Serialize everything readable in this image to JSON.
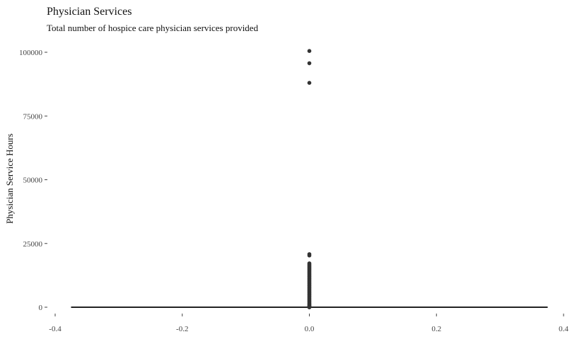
{
  "chart_data": {
    "type": "scatter",
    "title": "Physician Services",
    "subtitle": "Total number of hospice care physician services provided",
    "xlabel": "",
    "ylabel": "Physician Service Hours",
    "xlim": [
      -0.4,
      0.4
    ],
    "ylim": [
      0,
      100000
    ],
    "x_ticks": [
      -0.4,
      -0.2,
      0.0,
      0.2,
      0.4
    ],
    "x_tick_labels": [
      "-0.4",
      "-0.2",
      "0.0",
      "0.2",
      "0.4"
    ],
    "y_ticks": [
      0,
      25000,
      50000,
      75000,
      100000
    ],
    "y_tick_labels": [
      "0",
      "25000",
      "50000",
      "75000",
      "100000"
    ],
    "grid": false,
    "point_color": "#333333",
    "baseline_color": "#222222",
    "horizontal_line": {
      "y": 0,
      "x_from": -0.375,
      "x_to": 0.375
    },
    "series": [
      {
        "x": [
          0,
          0,
          0,
          0,
          0,
          0,
          0,
          0,
          0,
          0,
          0,
          0,
          0,
          0,
          0,
          0,
          0,
          0,
          0,
          0,
          0,
          0,
          0,
          0,
          0,
          0,
          0,
          0,
          0,
          0,
          0,
          0,
          0,
          0,
          0,
          0,
          0,
          0,
          0,
          0,
          0,
          0,
          0,
          0,
          0,
          0,
          0,
          0,
          0,
          0,
          0,
          0,
          0,
          0,
          0,
          0
        ],
        "y": [
          100500,
          95700,
          88000,
          20800,
          20300,
          17200,
          16800,
          16400,
          16000,
          15600,
          15200,
          14800,
          14400,
          14000,
          13600,
          13200,
          12800,
          12400,
          12000,
          11600,
          11200,
          10800,
          10400,
          10000,
          9600,
          9200,
          8800,
          8400,
          8000,
          7600,
          7200,
          6800,
          6400,
          6000,
          5600,
          5200,
          4800,
          4400,
          4000,
          3600,
          3200,
          2800,
          2400,
          2000,
          1600,
          1200,
          900,
          600,
          400,
          250,
          150,
          80,
          40,
          20,
          10,
          0
        ]
      }
    ]
  }
}
